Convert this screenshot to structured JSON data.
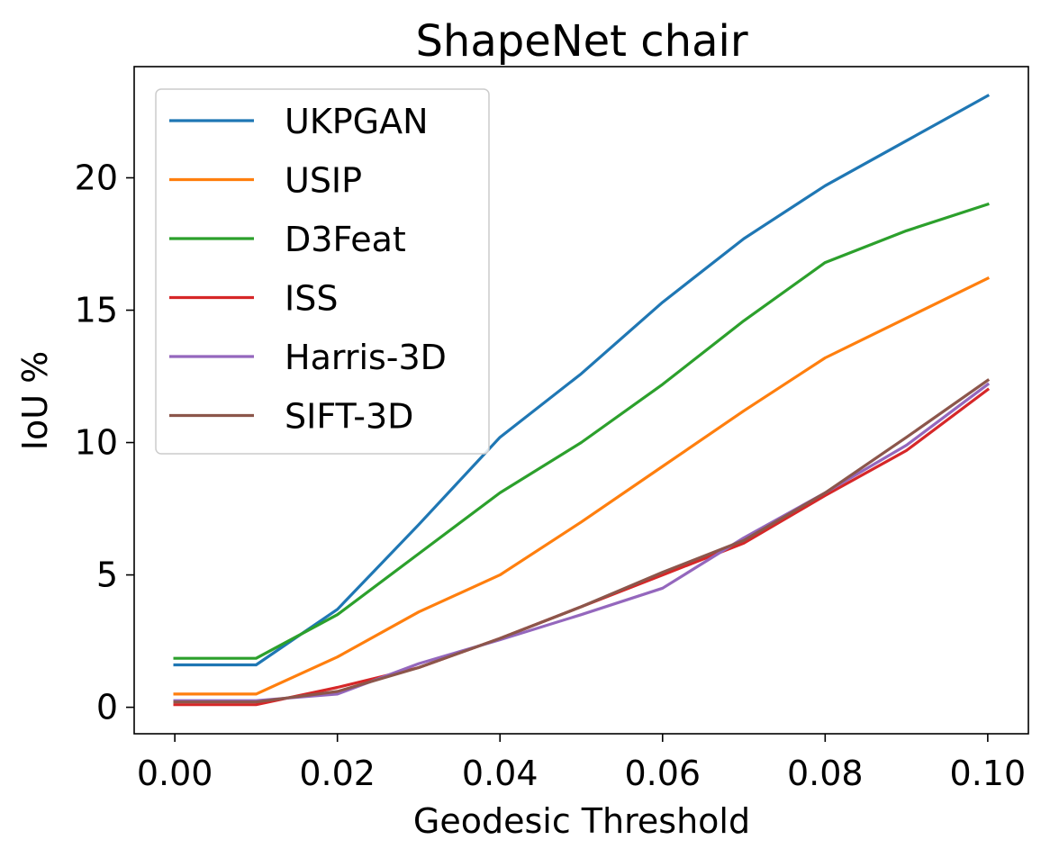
{
  "chart_data": {
    "type": "line",
    "title": "ShapeNet chair",
    "xlabel": "Geodesic Threshold",
    "ylabel": "IoU %",
    "x": [
      0.0,
      0.01,
      0.02,
      0.03,
      0.04,
      0.05,
      0.06,
      0.07,
      0.08,
      0.09,
      0.1
    ],
    "xlim": [
      -0.005,
      0.105
    ],
    "ylim": [
      -1.0,
      24.2
    ],
    "xticks": [
      0.0,
      0.02,
      0.04,
      0.06,
      0.08,
      0.1
    ],
    "xtick_labels": [
      "0.00",
      "0.02",
      "0.04",
      "0.06",
      "0.08",
      "0.10"
    ],
    "yticks": [
      0,
      5,
      10,
      15,
      20
    ],
    "ytick_labels": [
      "0",
      "5",
      "10",
      "15",
      "20"
    ],
    "grid": false,
    "legend_position": "upper-left",
    "series": [
      {
        "name": "UKPGAN",
        "color": "#1f77b4",
        "values": [
          1.6,
          1.6,
          3.7,
          6.9,
          10.2,
          12.6,
          15.3,
          17.7,
          19.7,
          21.4,
          23.1
        ]
      },
      {
        "name": "USIP",
        "color": "#ff7f0e",
        "values": [
          0.5,
          0.5,
          1.9,
          3.6,
          5.0,
          7.0,
          9.1,
          11.2,
          13.2,
          14.7,
          16.2
        ]
      },
      {
        "name": "D3Feat",
        "color": "#2ca02c",
        "values": [
          1.85,
          1.85,
          3.5,
          5.8,
          8.1,
          10.0,
          12.2,
          14.6,
          16.8,
          18.0,
          19.0
        ]
      },
      {
        "name": "ISS",
        "color": "#d62728",
        "values": [
          0.1,
          0.1,
          0.75,
          1.5,
          2.6,
          3.8,
          5.0,
          6.2,
          8.0,
          9.7,
          12.0
        ]
      },
      {
        "name": "Harris-3D",
        "color": "#9467bd",
        "values": [
          0.25,
          0.25,
          0.5,
          1.65,
          2.55,
          3.5,
          4.5,
          6.4,
          8.1,
          9.9,
          12.2
        ]
      },
      {
        "name": "SIFT-3D",
        "color": "#8c564b",
        "values": [
          0.2,
          0.2,
          0.6,
          1.5,
          2.6,
          3.8,
          5.1,
          6.3,
          8.1,
          10.2,
          12.35
        ]
      }
    ]
  }
}
